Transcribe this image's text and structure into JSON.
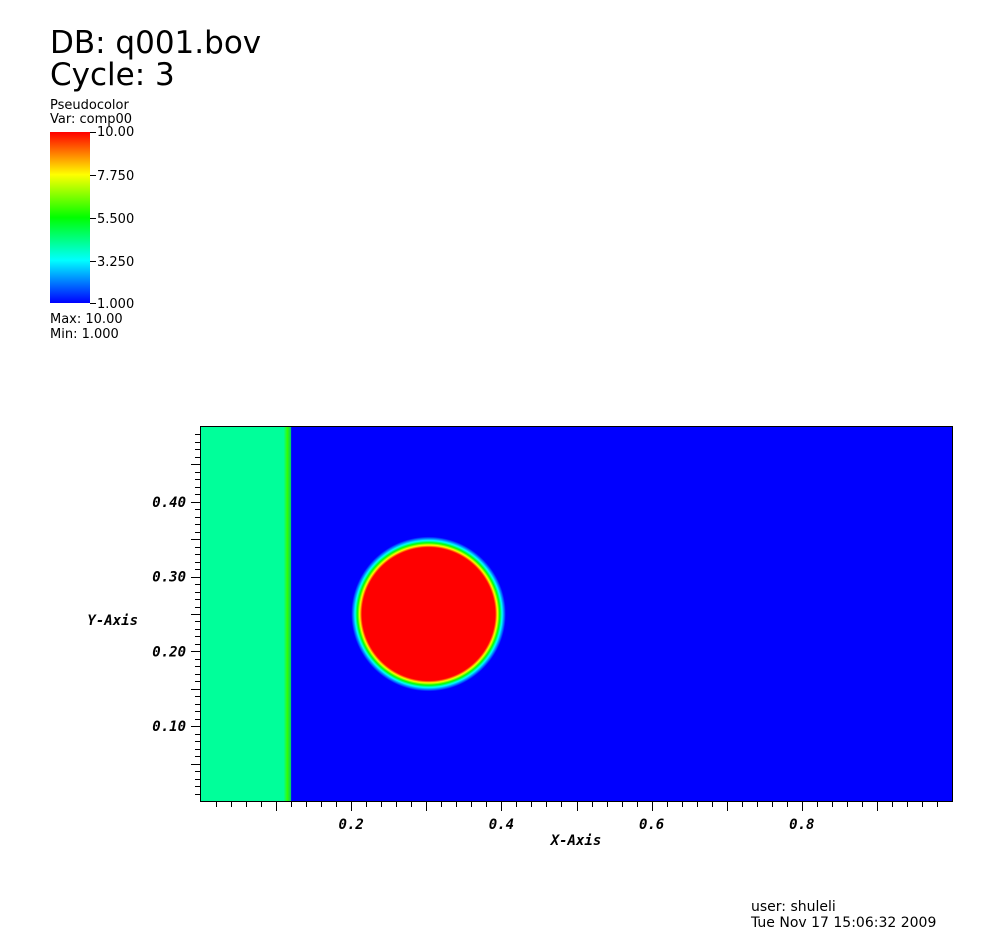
{
  "header": {
    "db": "DB: q001.bov",
    "cycle": "Cycle: 3"
  },
  "legend": {
    "plot_type": "Pseudocolor",
    "variable": "Var: comp00",
    "tick_labels": [
      "10.00",
      "7.750",
      "5.500",
      "3.250",
      "1.000"
    ],
    "max": "Max:  10.00",
    "min": "Min:  1.000",
    "colormap": [
      "#ff0000",
      "#ffff00",
      "#00ff00",
      "#00ffff",
      "#0000ff"
    ]
  },
  "footer": {
    "user": "user: shuleli",
    "date": "Tue Nov 17 15:06:32 2009"
  },
  "chart_data": {
    "type": "heatmap",
    "title": "",
    "xlabel": "X-Axis",
    "ylabel": "Y-Axis",
    "xlim": [
      0.0,
      1.0
    ],
    "ylim": [
      0.0,
      0.5
    ],
    "x_ticks": [
      0.2,
      0.4,
      0.6,
      0.8
    ],
    "x_tick_labels": [
      "0.2",
      "0.4",
      "0.6",
      "0.8"
    ],
    "y_ticks": [
      0.1,
      0.2,
      0.3,
      0.4
    ],
    "y_tick_labels": [
      "0.10",
      "0.20",
      "0.30",
      "0.40"
    ],
    "value_range": [
      1.0,
      10.0
    ],
    "background_value": 1.0,
    "regions": [
      {
        "shape": "band",
        "x_min": 0.0,
        "x_max": 0.117,
        "value": 4.7
      },
      {
        "shape": "band",
        "x_min": 0.11,
        "x_max": 0.12,
        "value": 5.5
      },
      {
        "shape": "disk",
        "center_x": 0.303,
        "center_y": 0.25,
        "radius": 0.1,
        "value": 10.0
      }
    ]
  }
}
